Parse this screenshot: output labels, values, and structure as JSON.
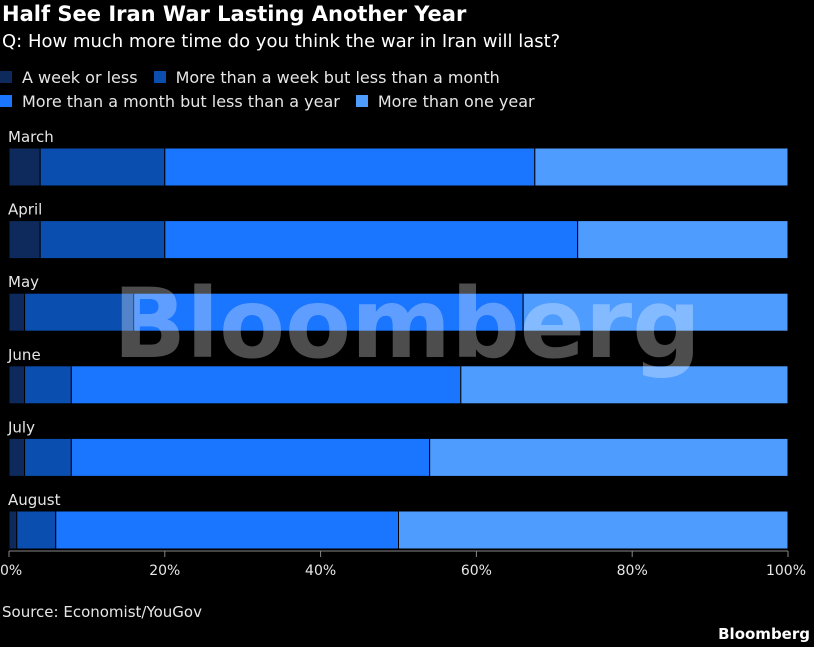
{
  "title": "Half See Iran War Lasting Another Year",
  "subtitle": "Q: How much more time do you think the war in Iran will last?",
  "source": "Source: Economist/YouGov",
  "brand": "Bloomberg",
  "watermark": "Bloomberg",
  "colors": [
    "#0e2a5c",
    "#0a4eb0",
    "#1a75ff",
    "#4f9cff"
  ],
  "chart_data": {
    "type": "bar",
    "orientation": "horizontal",
    "stacked": true,
    "categories": [
      "March",
      "April",
      "May",
      "June",
      "July",
      "August"
    ],
    "series": [
      {
        "name": "A week or less",
        "values": [
          4,
          4,
          2,
          2,
          2,
          1
        ]
      },
      {
        "name": "More than a week but less than a month",
        "values": [
          16,
          16,
          14,
          6,
          6,
          5
        ]
      },
      {
        "name": "More than a month but less than a year",
        "values": [
          47.5,
          53,
          50,
          50,
          46,
          44
        ]
      },
      {
        "name": "More than one year",
        "values": [
          32.5,
          27,
          34,
          42,
          46,
          50
        ]
      }
    ],
    "xlim": [
      0,
      100
    ],
    "xticks": [
      "0%",
      "20%",
      "40%",
      "60%",
      "80%",
      "100%"
    ],
    "legend_position": "top",
    "grid": false
  }
}
